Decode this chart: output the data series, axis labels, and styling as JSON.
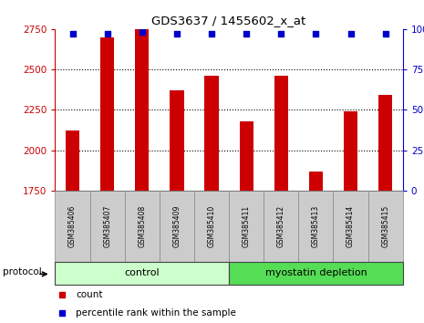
{
  "title": "GDS3637 / 1455602_x_at",
  "categories": [
    "GSM385406",
    "GSM385407",
    "GSM385408",
    "GSM385409",
    "GSM385410",
    "GSM385411",
    "GSM385412",
    "GSM385413",
    "GSM385414",
    "GSM385415"
  ],
  "bar_values": [
    2120,
    2700,
    2748,
    2370,
    2460,
    2180,
    2460,
    1870,
    2240,
    2340
  ],
  "percentile_values": [
    97,
    97,
    98,
    97,
    97,
    97,
    97,
    97,
    97,
    97
  ],
  "bar_color": "#cc0000",
  "dot_color": "#0000cc",
  "ylim_left": [
    1750,
    2750
  ],
  "ylim_right": [
    0,
    100
  ],
  "yticks_left": [
    1750,
    2000,
    2250,
    2500,
    2750
  ],
  "yticks_right": [
    0,
    25,
    50,
    75,
    100
  ],
  "group1_label": "control",
  "group2_label": "myostatin depletion",
  "group1_count": 5,
  "group2_count": 5,
  "protocol_label": "protocol",
  "legend_count_label": "count",
  "legend_pct_label": "percentile rank within the sample",
  "group1_color": "#ccffcc",
  "group2_color": "#55dd55",
  "bg_color": "#ffffff",
  "tick_color_left": "#cc0000",
  "tick_color_right": "#0000cc",
  "label_bg_color": "#cccccc",
  "dotted_lines": [
    2000,
    2250,
    2500
  ],
  "bar_width": 0.4
}
